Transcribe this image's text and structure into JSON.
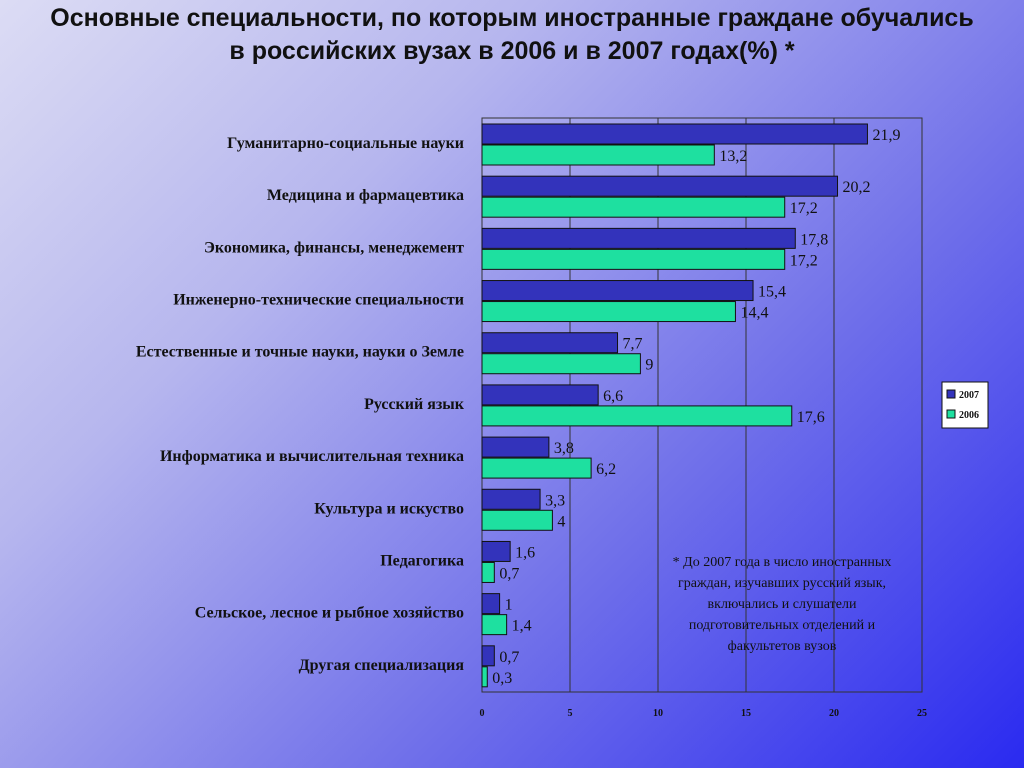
{
  "chart_data": {
    "type": "bar",
    "orientation": "horizontal",
    "title": "Основные специальности, по которым иностранные граждане обучались в российских вузах в 2006 и в 2007 годах(%) *",
    "categories": [
      "Гуманитарно-социальные науки",
      "Медицина и фармацевтика",
      "Экономика, финансы, менеджемент",
      "Инженерно-технические специальности",
      "Естественные и точные науки, науки о Земле",
      "Русский язык",
      "Информатика и вычислительная техника",
      "Культура и искуство",
      "Педагогика",
      "Сельское, лесное и рыбное хозяйство",
      "Другая специализация"
    ],
    "series": [
      {
        "name": "2007",
        "color": "#3333bb",
        "values": [
          21.9,
          20.2,
          17.8,
          15.4,
          7.7,
          6.6,
          3.8,
          3.3,
          1.6,
          1,
          0.7
        ],
        "labels": [
          "21,9",
          "20,2",
          "17,8",
          "15,4",
          "7,7",
          "6,6",
          "3,8",
          "3,3",
          "1,6",
          "1",
          "0,7"
        ]
      },
      {
        "name": "2006",
        "color": "#1ee0a0",
        "values": [
          13.2,
          17.2,
          17.2,
          14.4,
          9,
          17.6,
          6.2,
          4,
          0.7,
          1.4,
          0.3
        ],
        "labels": [
          "13,2",
          "17,2",
          "17,2",
          "14,4",
          "9",
          "17,6",
          "6,2",
          "4",
          "0,7",
          "1,4",
          "0,3"
        ]
      }
    ],
    "xlim": [
      0,
      25
    ],
    "xticks": [
      0,
      5,
      10,
      15,
      20,
      25
    ],
    "xtick_labels": [
      "0",
      "5",
      "10",
      "15",
      "20",
      "25"
    ],
    "grid": "vertical",
    "legend": "right",
    "xlabel": "",
    "ylabel": ""
  },
  "footnote": "*    До 2007 года в число иностранных граждан, изучавших русский язык, включались и слушатели подготовительных отделений и факультетов вузов"
}
